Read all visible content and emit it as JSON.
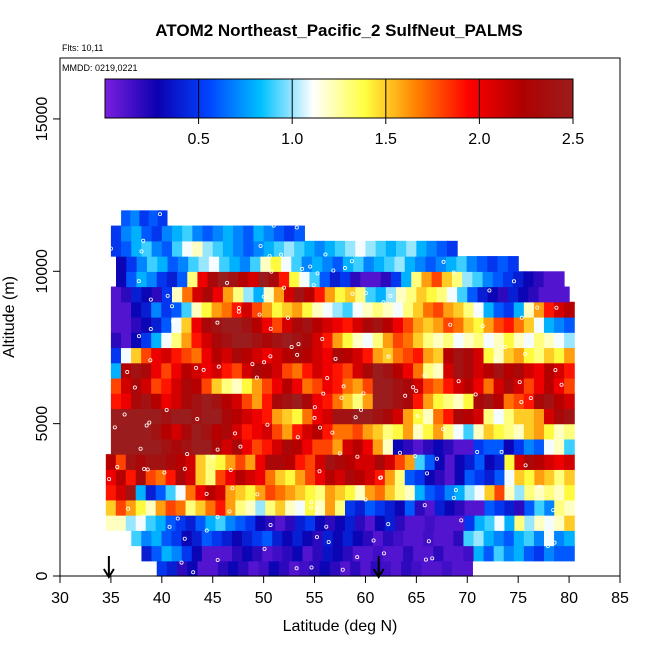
{
  "chart_data": {
    "type": "heatmap",
    "title": "ATOM2 Northeast_Pacific_2 SulfNeut_PALMS",
    "flights_label": "Flts: 10,11",
    "mmdd_label": "MMDD: 0219,0221",
    "xlabel": "Latitude (deg N)",
    "ylabel": "Altitude (m)",
    "xlim": [
      30,
      85
    ],
    "ylim": [
      0,
      17000
    ],
    "x_ticks": [
      "30",
      "35",
      "40",
      "45",
      "50",
      "55",
      "60",
      "65",
      "70",
      "75",
      "80",
      "85"
    ],
    "y_ticks": [
      "0",
      "5000",
      "10000",
      "15000"
    ],
    "colorbar": {
      "range": [
        0,
        2.5
      ],
      "tick_labels": [
        "0.5",
        "1.0",
        "1.5",
        "2.0",
        "2.5"
      ],
      "stops": [
        "#7a1fe0",
        "#0d00b0",
        "#0044ff",
        "#00c0ff",
        "#ffffff",
        "#ffff40",
        "#ff8000",
        "#ff0000",
        "#b00000",
        "#9b1c1c"
      ]
    },
    "arrows_at_latitude": [
      34.8,
      61.3
    ],
    "grid": false,
    "legend": "colorbar top",
    "band_breaks_m": [
      0,
      500,
      1000,
      1500,
      2000,
      2500,
      3000,
      3500,
      4000,
      4500,
      5000,
      5500,
      6000,
      6500,
      7000,
      7500,
      8000,
      8500,
      9000,
      9500,
      10000,
      10500,
      11000,
      11500,
      12000
    ],
    "bands": [
      {
        "y0": 0,
        "y1": 500,
        "x0": 39.5,
        "x1": 70.5,
        "vals": [
          0.5,
          0.4,
          0.2,
          0.3,
          0.1,
          0.1,
          0.2,
          0.3,
          0.2,
          0.1,
          0.15,
          0.3,
          0.2,
          0.1,
          0.15,
          0.2,
          0.3,
          0.2,
          0.1,
          0.2,
          0.1,
          0.2,
          0.15,
          0.1,
          0.2,
          0.15,
          0.1,
          0.1,
          0.15,
          0.1,
          0.1
        ]
      },
      {
        "y0": 500,
        "y1": 1000,
        "x0": 38,
        "x1": 80.5,
        "vals": [
          0.4,
          0.6,
          0.8,
          0.7,
          0.5,
          0.3,
          0.1,
          0.1,
          0.1,
          0.2,
          0.3,
          0.2,
          0.1,
          0.15,
          0.2,
          0.3,
          0.1,
          0.2,
          0.35,
          0.3,
          0.2,
          0.1,
          0.1,
          0.15,
          0.1,
          0.1,
          0.2,
          0.1,
          0.1,
          0.2,
          0.1,
          0.1,
          0.15,
          0.8,
          0.6,
          0.9,
          0.7,
          0.8,
          0.6,
          0.5,
          0.7,
          0.6,
          0.6
        ]
      },
      {
        "y0": 1000,
        "y1": 1500,
        "x0": 37,
        "x1": 80.5,
        "vals": [
          0.9,
          0.7,
          0.8,
          0.6,
          0.5,
          0.3,
          0.4,
          0.6,
          0.5,
          0.4,
          0.3,
          0.4,
          0.5,
          0.6,
          0.4,
          0.3,
          0.4,
          0.3,
          0.2,
          0.4,
          0.3,
          0.4,
          0.3,
          0.2,
          0.1,
          0.2,
          0.15,
          0.1,
          0.1,
          0.15,
          0.1,
          0.1,
          0.2,
          0.9,
          1.0,
          0.8,
          0.7,
          0.6,
          0.8,
          0.9,
          0.7,
          1.1,
          0.7,
          0.8
        ]
      },
      {
        "y0": 1500,
        "y1": 2000,
        "x0": 34.5,
        "x1": 80.5,
        "vals": [
          1.2,
          1.2,
          1.0,
          1.1,
          0.9,
          0.8,
          0.6,
          0.5,
          0.4,
          0.6,
          0.8,
          0.9,
          0.7,
          0.6,
          0.5,
          0.3,
          0.2,
          0.1,
          0.2,
          0.4,
          0.5,
          0.3,
          0.2,
          0.3,
          0.4,
          0.2,
          0.1,
          0.3,
          0.4,
          0.2,
          0.1,
          0.1,
          0.15,
          0.1,
          0.1,
          0.1,
          0.5,
          0.8,
          0.9,
          1.1,
          0.8,
          1.3,
          1.0,
          1.2,
          1.1,
          1.2,
          1.5
        ]
      },
      {
        "y0": 2000,
        "y1": 2500,
        "x0": 34.5,
        "x1": 80.5,
        "vals": [
          1.5,
          1.8,
          1.6,
          1.4,
          1.2,
          1.6,
          1.8,
          1.7,
          1.3,
          1.5,
          1.7,
          1.9,
          1.6,
          1.3,
          1.2,
          1.0,
          1.3,
          1.5,
          1.2,
          1.1,
          1.4,
          1.2,
          1.6,
          1.3,
          0.5,
          0.4,
          0.6,
          0.5,
          0.4,
          0.3,
          0.6,
          0.2,
          0.1,
          0.4,
          0.3,
          0.2,
          0.1,
          0.1,
          0.6,
          0.5,
          0.4,
          0.2,
          0.6,
          0.9,
          0.7,
          1.3,
          1.2
        ]
      },
      {
        "y0": 2500,
        "y1": 3000,
        "x0": 34.5,
        "x1": 80.5,
        "vals": [
          1.9,
          2.1,
          2.4,
          0.8,
          0.4,
          0.6,
          0.9,
          1.1,
          1.7,
          2.0,
          2.2,
          2.1,
          1.6,
          1.5,
          1.4,
          1.6,
          1.8,
          1.7,
          1.6,
          1.5,
          1.4,
          1.3,
          1.6,
          1.5,
          1.4,
          1.2,
          1.6,
          1.7,
          1.5,
          1.3,
          1.2,
          0.8,
          0.6,
          0.5,
          0.7,
          0.8,
          1.0,
          1.1,
          1.5,
          1.8,
          1.2,
          1.0,
          1.3,
          1.2,
          1.3,
          1.2,
          1.4
        ]
      },
      {
        "y0": 3000,
        "y1": 3500,
        "x0": 34.5,
        "x1": 80.5,
        "vals": [
          2.0,
          2.2,
          1.9,
          2.3,
          1.8,
          1.7,
          1.9,
          2.3,
          2.1,
          1.5,
          1.3,
          1.8,
          2.0,
          2.2,
          2.1,
          2.0,
          1.7,
          1.5,
          1.4,
          1.6,
          1.8,
          2.0,
          2.2,
          2.1,
          2.3,
          2.2,
          2.1,
          1.9,
          1.6,
          1.3,
          0.6,
          0.5,
          0.3,
          0.2,
          0.1,
          0.3,
          0.6,
          0.5,
          0.4,
          0.6,
          1.1,
          1.5,
          1.4,
          1.6,
          1.5,
          1.3,
          1.5
        ]
      },
      {
        "y0": 3500,
        "y1": 4000,
        "x0": 34.5,
        "x1": 80.5,
        "vals": [
          2.2,
          1.8,
          2.4,
          2.3,
          2.4,
          2.4,
          2.3,
          2.2,
          2.1,
          1.5,
          1.3,
          1.4,
          1.6,
          1.8,
          1.6,
          2.0,
          2.3,
          2.3,
          2.2,
          1.9,
          1.8,
          2.1,
          2.4,
          2.3,
          2.2,
          2.1,
          2.1,
          2.3,
          2.1,
          1.8,
          1.6,
          0.9,
          0.6,
          0.3,
          0.1,
          0.3,
          0.4,
          0.6,
          0.3,
          0.4,
          1.4,
          2.1,
          2.3,
          2.2,
          2.1,
          2.0,
          2.1
        ]
      },
      {
        "y0": 4000,
        "y1": 4500,
        "x0": 35,
        "x1": 80.5,
        "vals": [
          2.5,
          2.5,
          2.5,
          2.5,
          2.5,
          2.4,
          2.3,
          2.4,
          2.5,
          2.5,
          2.3,
          2.1,
          2.3,
          2.0,
          1.8,
          1.9,
          2.1,
          2.3,
          2.2,
          2.0,
          1.8,
          1.8,
          1.6,
          2.1,
          2.2,
          2.0,
          1.6,
          1.2,
          0.3,
          0.2,
          0.1,
          0.2,
          0.3,
          0.2,
          0.1,
          0.1,
          0.5,
          0.6,
          0.6,
          0.3,
          0.5,
          0.7,
          0.6,
          1.1,
          1.2,
          0.9
        ]
      },
      {
        "y0": 4500,
        "y1": 5000,
        "x0": 35,
        "x1": 80.5,
        "vals": [
          2.5,
          2.5,
          2.5,
          2.5,
          2.4,
          2.2,
          2.1,
          2.3,
          2.5,
          2.4,
          2.2,
          2.3,
          2.1,
          1.9,
          2.0,
          2.1,
          1.8,
          1.6,
          1.9,
          2.1,
          2.2,
          1.9,
          1.7,
          1.7,
          1.8,
          1.6,
          1.5,
          1.3,
          1.4,
          1.6,
          1.2,
          1.4,
          1.6,
          1.3,
          1.1,
          0.9,
          1.2,
          1.5,
          1.4,
          1.3,
          1.2,
          1.5,
          1.6,
          1.4,
          1.2,
          1.3
        ]
      },
      {
        "y0": 5000,
        "y1": 5500,
        "x0": 35,
        "x1": 80.5,
        "vals": [
          2.5,
          2.5,
          2.5,
          2.5,
          2.5,
          2.4,
          2.5,
          2.5,
          2.4,
          2.5,
          2.5,
          2.3,
          2.2,
          2.1,
          2.0,
          1.9,
          1.6,
          1.5,
          1.4,
          1.7,
          2.0,
          2.1,
          2.4,
          2.4,
          2.5,
          2.5,
          2.4,
          2.3,
          2.1,
          1.6,
          1.4,
          1.2,
          1.7,
          1.9,
          2.3,
          2.2,
          2.1,
          1.3,
          1.1,
          1.3,
          1.5,
          1.5,
          1.6,
          2.1,
          2.3,
          2.4
        ]
      },
      {
        "y0": 5500,
        "y1": 6000,
        "x0": 35,
        "x1": 80.5,
        "vals": [
          1.9,
          2.0,
          2.3,
          2.4,
          2.2,
          2.0,
          2.1,
          2.3,
          2.4,
          2.5,
          2.4,
          2.2,
          2.1,
          1.8,
          1.6,
          1.9,
          2.3,
          2.4,
          2.5,
          2.3,
          2.0,
          1.9,
          1.7,
          1.5,
          1.3,
          1.6,
          2.5,
          2.5,
          2.4,
          2.3,
          1.9,
          1.6,
          1.4,
          1.3,
          1.2,
          1.4,
          2.3,
          2.4,
          2.2,
          1.7,
          1.8,
          1.9,
          2.3,
          2.4,
          2.2,
          2.1
        ]
      },
      {
        "y0": 6000,
        "y1": 6500,
        "x0": 35,
        "x1": 80.5,
        "vals": [
          1.8,
          2.1,
          2.3,
          2.1,
          1.8,
          1.9,
          2.1,
          2.3,
          2.2,
          1.8,
          1.5,
          1.3,
          1.2,
          1.4,
          1.6,
          1.8,
          2.0,
          2.2,
          2.0,
          1.7,
          1.8,
          2.0,
          1.9,
          1.7,
          1.6,
          1.8,
          2.5,
          2.5,
          2.4,
          2.3,
          2.1,
          1.8,
          1.7,
          1.9,
          2.1,
          2.2,
          2.0,
          1.7,
          2.1,
          2.3,
          2.1,
          1.8,
          2.0,
          2.2,
          2.0,
          1.8
        ]
      },
      {
        "y0": 6500,
        "y1": 7000,
        "x0": 35,
        "x1": 80.5,
        "vals": [
          0.8,
          2.2,
          2.4,
          2.3,
          2.0,
          1.8,
          2.0,
          2.2,
          2.1,
          2.0,
          2.1,
          1.9,
          1.8,
          2.1,
          2.3,
          2.2,
          2.1,
          1.8,
          1.7,
          1.9,
          2.1,
          2.0,
          1.9,
          1.8,
          2.1,
          2.3,
          2.5,
          2.4,
          2.2,
          2.0,
          1.7,
          1.3,
          1.2,
          2.1,
          2.4,
          2.3,
          2.1,
          2.2,
          2.4,
          2.2,
          2.3,
          2.1,
          2.0,
          2.2,
          2.1,
          1.9
        ]
      },
      {
        "y0": 7000,
        "y1": 7500,
        "x0": 35,
        "x1": 80.5,
        "vals": [
          0.5,
          1.1,
          1.5,
          1.8,
          2.0,
          2.1,
          1.9,
          1.8,
          1.7,
          2.0,
          2.2,
          2.1,
          2.3,
          2.2,
          2.1,
          2.0,
          2.1,
          2.2,
          2.3,
          2.2,
          2.1,
          2.0,
          2.3,
          2.2,
          2.1,
          1.9,
          1.6,
          1.5,
          1.7,
          1.8,
          1.9,
          1.6,
          1.5,
          2.2,
          2.4,
          2.3,
          2.1,
          1.4,
          1.2,
          1.5,
          1.6,
          1.4,
          1.3,
          1.5,
          1.4,
          1.6
        ]
      },
      {
        "y0": 7500,
        "y1": 8000,
        "x0": 35,
        "x1": 80.5,
        "vals": [
          0.2,
          0.1,
          0.3,
          0.5,
          0.8,
          1.1,
          1.3,
          1.6,
          1.9,
          2.1,
          2.3,
          2.4,
          2.5,
          2.5,
          2.4,
          2.3,
          2.4,
          2.5,
          2.4,
          2.3,
          2.1,
          1.9,
          1.6,
          1.4,
          1.2,
          1.1,
          1.3,
          1.6,
          1.8,
          1.7,
          1.5,
          1.3,
          1.2,
          1.3,
          1.1,
          1.2,
          1.3,
          1.1,
          1.2,
          1.4,
          1.2,
          1.1,
          1.3,
          1.2,
          1.1,
          1.0
        ]
      },
      {
        "y0": 8000,
        "y1": 8500,
        "x0": 35,
        "x1": 80.5,
        "vals": [
          0.1,
          0.1,
          0.2,
          0.3,
          0.4,
          0.6,
          1.1,
          1.5,
          2.0,
          2.3,
          2.4,
          2.5,
          2.5,
          2.4,
          2.2,
          2.0,
          1.8,
          2.1,
          2.3,
          2.4,
          2.2,
          2.1,
          2.0,
          1.9,
          2.1,
          2.3,
          2.4,
          2.2,
          2.0,
          1.8,
          1.6,
          1.5,
          1.6,
          1.8,
          1.7,
          1.5,
          1.4,
          1.6,
          1.8,
          1.9,
          1.7,
          1.5,
          1.1,
          0.8,
          0.7,
          0.6
        ]
      },
      {
        "y0": 8500,
        "y1": 9000,
        "x0": 35,
        "x1": 80.5,
        "vals": [
          0.1,
          0.1,
          0.3,
          0.4,
          0.7,
          0.5,
          0.6,
          0.9,
          1.2,
          1.4,
          1.6,
          1.7,
          1.9,
          2.1,
          1.8,
          1.6,
          1.4,
          1.5,
          1.6,
          1.4,
          1.2,
          1.1,
          1.0,
          0.9,
          1.1,
          1.2,
          1.3,
          1.2,
          1.1,
          1.3,
          1.5,
          1.7,
          1.8,
          1.6,
          1.5,
          1.3,
          1.1,
          0.8,
          0.6,
          0.5,
          0.8,
          1.2,
          1.6,
          1.9,
          2.1,
          2.2
        ]
      },
      {
        "y0": 9000,
        "y1": 9500,
        "x0": 35,
        "x1": 80,
        "vals": [
          0.1,
          0.2,
          0.4,
          0.3,
          0.2,
          0.5,
          1.2,
          1.7,
          2.1,
          2.3,
          2.0,
          1.6,
          1.3,
          1.0,
          0.8,
          1.2,
          1.6,
          2.1,
          2.4,
          2.2,
          1.9,
          1.6,
          1.4,
          1.5,
          1.3,
          0.9,
          0.8,
          1.0,
          1.2,
          1.3,
          1.5,
          1.4,
          1.3,
          1.1,
          0.9,
          0.6,
          0.4,
          0.3,
          0.2,
          0.4,
          0.3,
          0.2,
          0.1,
          0.1,
          0.1
        ]
      },
      {
        "y0": 9500,
        "y1": 10000,
        "x0": 35.5,
        "x1": 79.5,
        "vals": [
          0.3,
          0.6,
          0.8,
          0.7,
          0.5,
          0.4,
          0.6,
          1.3,
          2.0,
          2.3,
          2.5,
          2.4,
          2.2,
          2.1,
          2.5,
          2.3,
          1.9,
          1.4,
          1.1,
          0.9,
          0.6,
          0.4,
          0.5,
          0.2,
          0.1,
          0.1,
          0.2,
          0.5,
          0.8,
          1.3,
          1.6,
          1.8,
          1.5,
          1.3,
          1.0,
          0.9,
          0.7,
          0.6,
          0.5,
          0.4,
          0.3,
          0.2,
          0.1,
          0.1
        ]
      },
      {
        "y0": 10000,
        "y1": 10500,
        "x0": 35.5,
        "x1": 75,
        "vals": [
          0.3,
          0.5,
          0.7,
          0.9,
          0.8,
          0.6,
          0.7,
          0.9,
          1.0,
          1.1,
          0.9,
          0.8,
          0.7,
          0.9,
          1.2,
          1.4,
          1.1,
          0.9,
          0.7,
          0.8,
          0.7,
          0.6,
          0.8,
          0.9,
          0.7,
          0.8,
          0.9,
          1.0,
          0.8,
          0.7,
          0.6,
          0.7,
          0.8,
          0.9,
          0.7,
          0.6,
          0.5,
          0.6,
          0.5
        ]
      },
      {
        "y0": 10500,
        "y1": 11000,
        "x0": 35,
        "x1": 69,
        "vals": [
          0.5,
          0.6,
          0.8,
          0.9,
          0.7,
          0.6,
          0.9,
          1.1,
          1.2,
          1.0,
          0.9,
          0.8,
          0.7,
          0.6,
          0.7,
          0.8,
          0.9,
          1.0,
          0.9,
          0.8,
          0.7,
          0.8,
          0.9,
          1.0,
          1.1,
          1.0,
          0.9,
          0.8,
          0.9,
          1.0,
          0.8,
          0.7,
          0.6,
          0.5
        ]
      },
      {
        "y0": 11000,
        "y1": 11500,
        "x0": 35,
        "x1": 54,
        "vals": [
          0.5,
          0.7,
          0.8,
          0.6,
          0.5,
          0.7,
          0.8,
          0.9,
          0.7,
          0.6,
          0.7,
          0.8,
          0.7,
          0.6,
          0.8,
          0.7,
          0.6,
          0.5,
          0.6
        ]
      },
      {
        "y0": 11500,
        "y1": 12000,
        "x0": 36,
        "x1": 40.5,
        "vals": [
          0.6,
          0.7,
          0.5,
          0.6,
          0.5
        ]
      }
    ]
  }
}
